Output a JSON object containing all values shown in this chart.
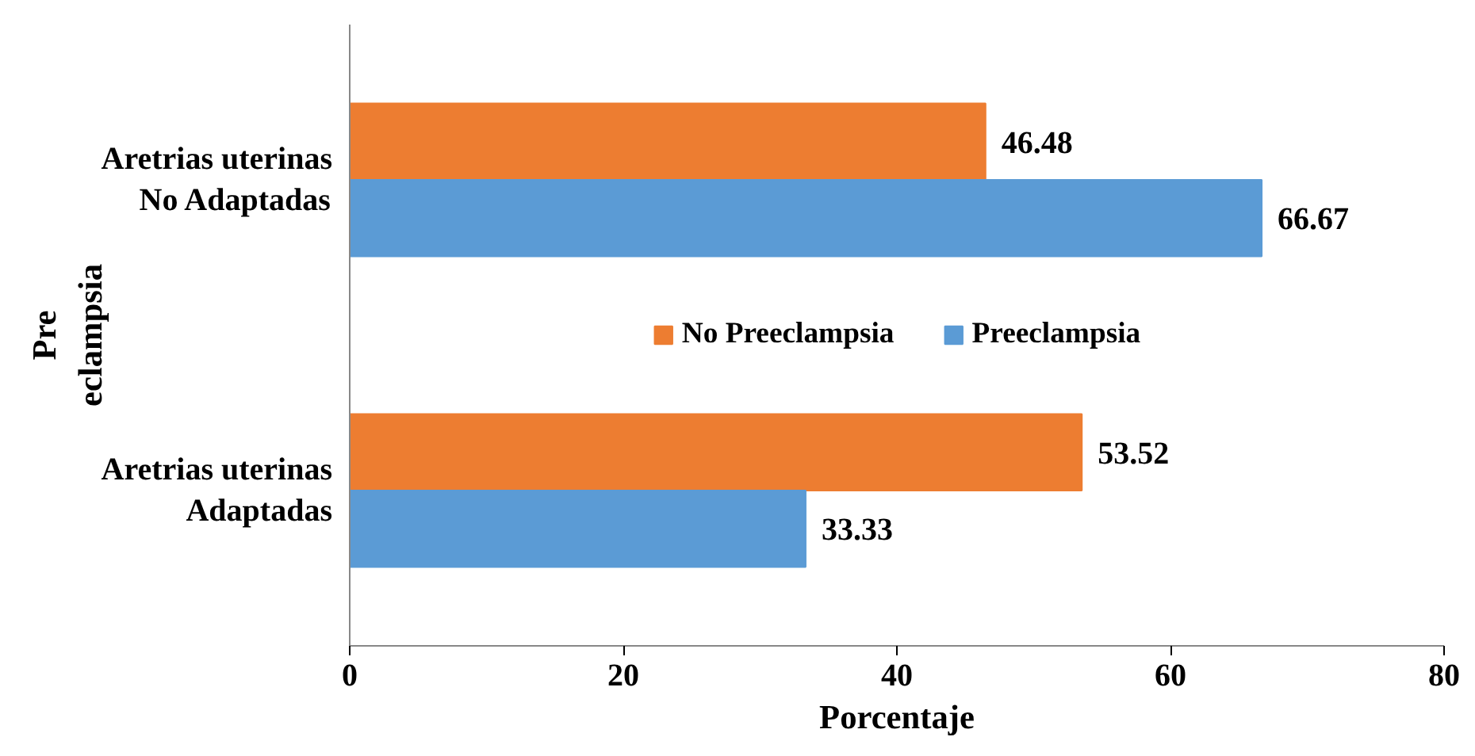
{
  "chart_data": {
    "type": "bar",
    "orientation": "horizontal",
    "categories": [
      "Aretrias uterinas\nNo Adaptadas",
      "Aretrias uterinas\nAdaptadas"
    ],
    "series": [
      {
        "name": "No Preeclampsia",
        "color": "#ed7d31",
        "values": [
          46.48,
          53.52
        ]
      },
      {
        "name": "Preeclampsia",
        "color": "#5b9bd5",
        "values": [
          66.67,
          33.33
        ]
      }
    ],
    "xlabel": "Porcentaje",
    "ylabel": "Pre\neclampsia",
    "xlim": [
      0,
      80
    ],
    "xticks": [
      0,
      20,
      40,
      60,
      80
    ],
    "data_labels": true,
    "legend": "center",
    "grid": false
  }
}
